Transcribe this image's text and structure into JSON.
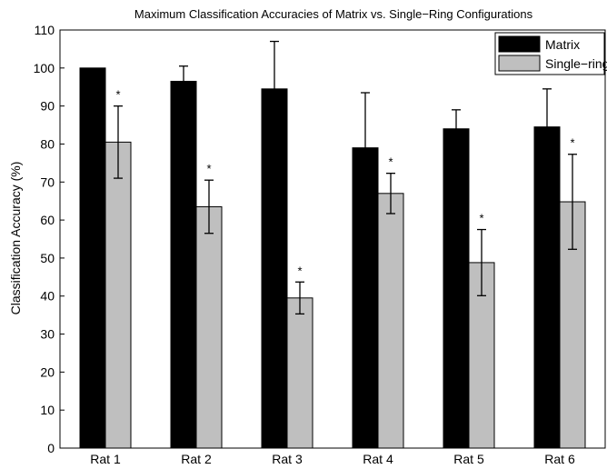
{
  "chart_data": {
    "type": "bar",
    "title": "Maximum Classification Accuracies of Matrix vs. Single−Ring Configurations",
    "xlabel": "",
    "ylabel": "Classification Accuracy (%)",
    "ylim": [
      0,
      110
    ],
    "yticks": [
      0,
      10,
      20,
      30,
      40,
      50,
      60,
      70,
      80,
      90,
      100,
      110
    ],
    "grid": false,
    "legend_position": "top-right",
    "categories": [
      "Rat 1",
      "Rat 2",
      "Rat 3",
      "Rat 4",
      "Rat 5",
      "Rat 6"
    ],
    "series": [
      {
        "name": "Matrix",
        "color": "#000000",
        "values": [
          100,
          96.5,
          94.5,
          79,
          84,
          84.5
        ],
        "errors": [
          0,
          4,
          12.5,
          14.5,
          5,
          10
        ]
      },
      {
        "name": "Single−ring",
        "color": "#bfbfbf",
        "values": [
          80.5,
          63.5,
          39.5,
          67,
          48.8,
          64.8
        ],
        "errors": [
          9.5,
          7,
          4.2,
          5.3,
          8.7,
          12.5
        ]
      }
    ],
    "annotations": [
      {
        "series": "Single−ring",
        "category": "Rat 1",
        "text": "*"
      },
      {
        "series": "Single−ring",
        "category": "Rat 2",
        "text": "*"
      },
      {
        "series": "Single−ring",
        "category": "Rat 3",
        "text": "*"
      },
      {
        "series": "Single−ring",
        "category": "Rat 4",
        "text": "*"
      },
      {
        "series": "Single−ring",
        "category": "Rat 5",
        "text": "*"
      },
      {
        "series": "Single−ring",
        "category": "Rat 6",
        "text": "*"
      }
    ]
  }
}
